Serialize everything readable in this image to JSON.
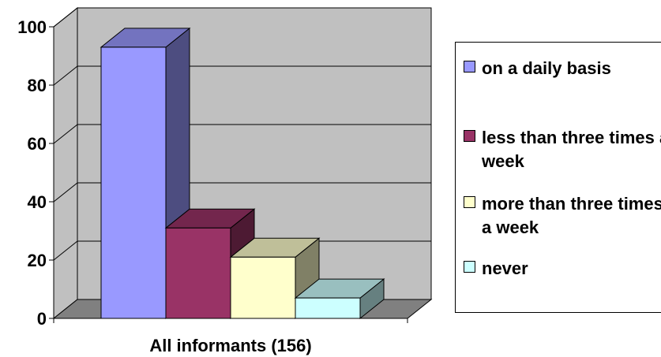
{
  "chart_data": {
    "type": "bar",
    "categories": [
      "All informants (156)"
    ],
    "series": [
      {
        "name": "on a daily basis",
        "values": [
          93
        ],
        "color": "#9999FF"
      },
      {
        "name": "less than three times a week",
        "values": [
          31
        ],
        "color": "#993366"
      },
      {
        "name": "more than three times a week",
        "values": [
          21
        ],
        "color": "#FFFFCC"
      },
      {
        "name": "never",
        "values": [
          7
        ],
        "color": "#CCFFFF"
      }
    ],
    "title": "",
    "xlabel": "",
    "ylabel": "",
    "ylim": [
      0,
      100
    ],
    "yticks": [
      "0",
      "20",
      "40",
      "60",
      "80",
      "100"
    ],
    "grid": true,
    "three_d": true,
    "legend_position": "right",
    "wall_color": "#C0C0C0",
    "floor_color": "#808080"
  }
}
